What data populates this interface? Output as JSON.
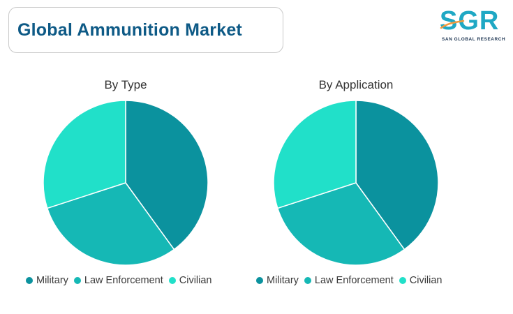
{
  "header": {
    "title": "Global Ammunition Market"
  },
  "logo": {
    "main": "SGR",
    "sub": "SAN GLOBAL RESEARCH"
  },
  "colors": {
    "military": "#0b929e",
    "law_enforcement": "#15b8b5",
    "civilian": "#21e0c9",
    "title": "#0e5a86",
    "logo": "#1fa8c4"
  },
  "chart_data": [
    {
      "type": "pie",
      "title": "By Type",
      "categories": [
        "Military",
        "Law Enforcement",
        "Civilian"
      ],
      "values": [
        40,
        30,
        30
      ],
      "colors": [
        "#0b929e",
        "#15b8b5",
        "#21e0c9"
      ],
      "legend_position": "bottom"
    },
    {
      "type": "pie",
      "title": "By Application",
      "categories": [
        "Military",
        "Law Enforcement",
        "Civilian"
      ],
      "values": [
        40,
        30,
        30
      ],
      "colors": [
        "#0b929e",
        "#15b8b5",
        "#21e0c9"
      ],
      "legend_position": "bottom"
    }
  ]
}
